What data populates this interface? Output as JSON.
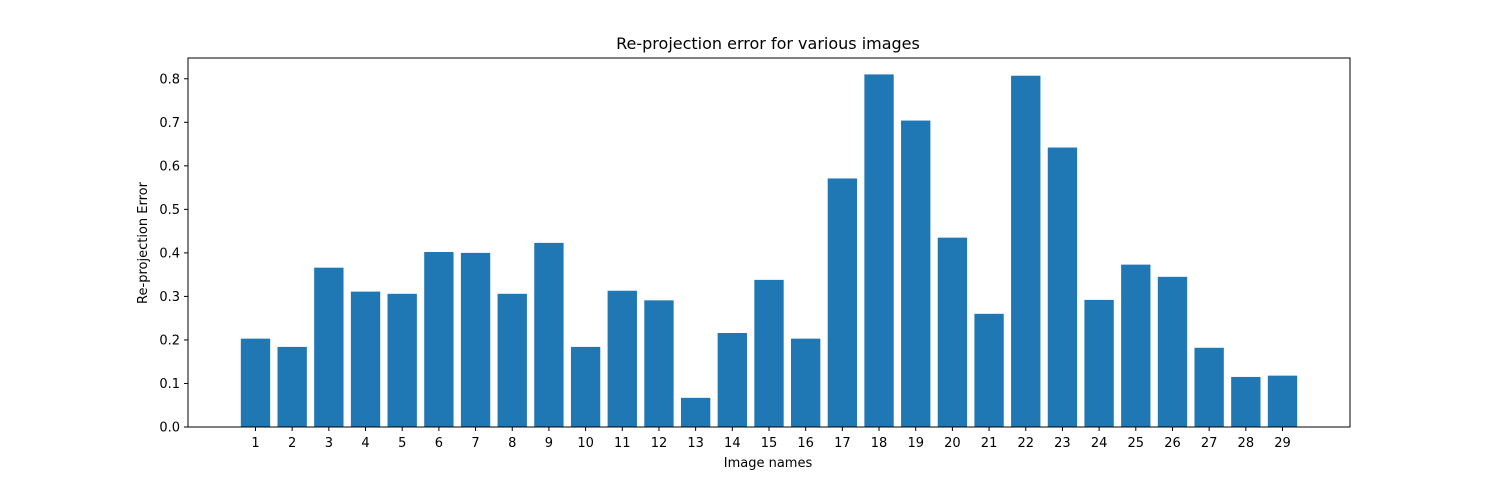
{
  "chart_data": {
    "type": "bar",
    "title": "Re-projection error for various images",
    "xlabel": "Image names",
    "ylabel": "Re-projection Error",
    "categories": [
      "1",
      "2",
      "3",
      "4",
      "5",
      "6",
      "7",
      "8",
      "9",
      "10",
      "11",
      "12",
      "13",
      "14",
      "15",
      "16",
      "17",
      "18",
      "19",
      "20",
      "21",
      "22",
      "23",
      "24",
      "25",
      "26",
      "27",
      "28",
      "29"
    ],
    "values": [
      0.203,
      0.184,
      0.366,
      0.311,
      0.306,
      0.402,
      0.4,
      0.306,
      0.423,
      0.184,
      0.313,
      0.291,
      0.067,
      0.216,
      0.338,
      0.203,
      0.571,
      0.81,
      0.704,
      0.435,
      0.26,
      0.807,
      0.642,
      0.292,
      0.373,
      0.345,
      0.182,
      0.115,
      0.118
    ],
    "ylim": [
      0,
      0.8477
    ],
    "yticks": [
      "0.0",
      "0.1",
      "0.2",
      "0.3",
      "0.4",
      "0.5",
      "0.6",
      "0.7",
      "0.8"
    ],
    "grid": false,
    "legend": "none",
    "colors": {
      "bar": "#1f77b4",
      "axis": "#000000",
      "background": "#ffffff"
    }
  }
}
